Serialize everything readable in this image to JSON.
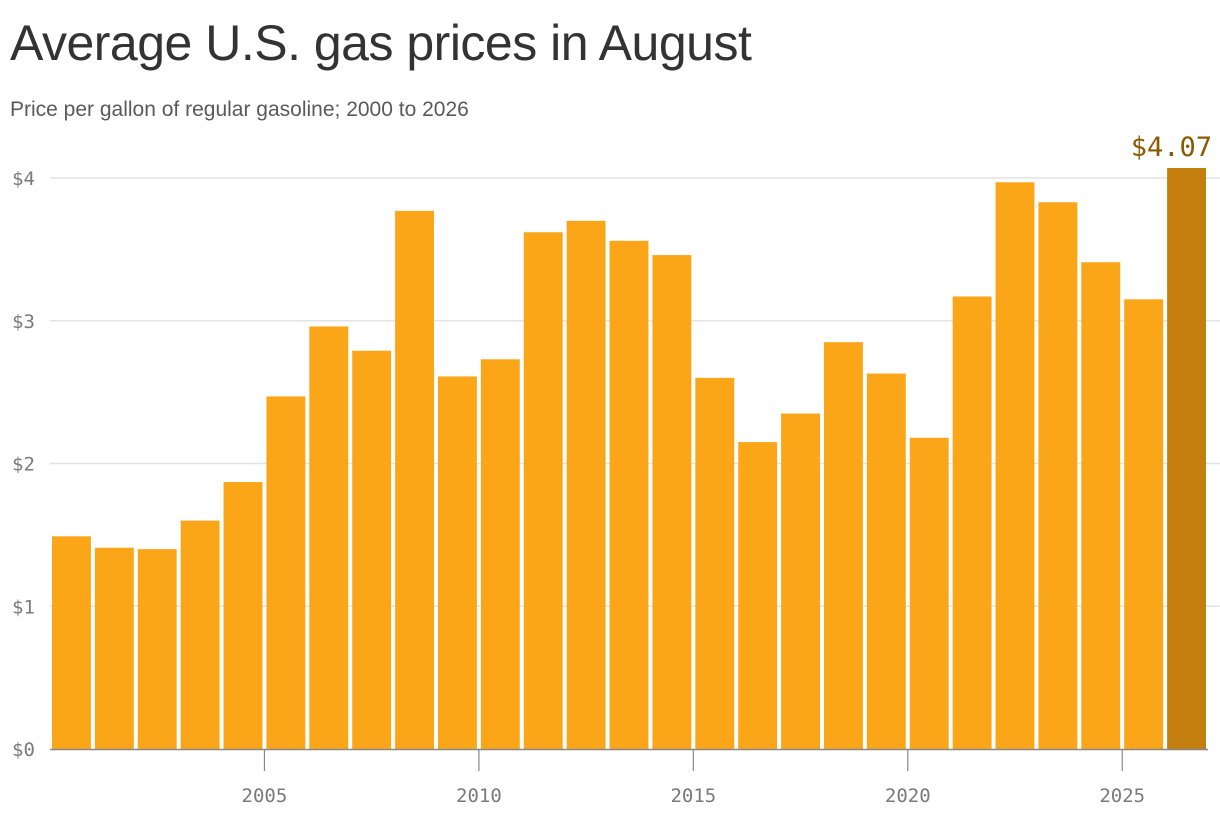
{
  "title": "Average U.S. gas prices in August",
  "subtitle": "Price per gallon of regular gasoline; 2000 to 2026",
  "colors": {
    "bar": "#FBA518",
    "highlight": "#C47F0F",
    "callout_text": "#8A5A00",
    "gridline": "#e3e3e3",
    "baseline": "#888888"
  },
  "chart_data": {
    "type": "bar",
    "title": "Average U.S. gas prices in August",
    "subtitle": "Price per gallon of regular gasoline; 2000 to 2026",
    "xlabel": "",
    "ylabel": "",
    "categories": [
      "2000",
      "2001",
      "2002",
      "2003",
      "2004",
      "2005",
      "2006",
      "2007",
      "2008",
      "2009",
      "2010",
      "2011",
      "2012",
      "2013",
      "2014",
      "2015",
      "2016",
      "2017",
      "2018",
      "2019",
      "2020",
      "2021",
      "2022",
      "2023",
      "2024",
      "2025",
      "2026"
    ],
    "values": [
      1.49,
      1.41,
      1.4,
      1.6,
      1.87,
      2.47,
      2.96,
      2.79,
      3.77,
      2.61,
      2.73,
      3.62,
      3.7,
      3.56,
      3.46,
      2.6,
      2.15,
      2.35,
      2.85,
      2.63,
      2.18,
      3.17,
      3.97,
      3.83,
      3.41,
      3.15,
      4.07
    ],
    "ylim": [
      0,
      4
    ],
    "y_ticks": [
      0,
      1,
      2,
      3,
      4
    ],
    "y_tick_labels": [
      "$0",
      "$1",
      "$2",
      "$3",
      "$4"
    ],
    "x_ticks": [
      "2005",
      "2010",
      "2015",
      "2020",
      "2025"
    ],
    "highlight": {
      "category": "2026",
      "label": "$4.07"
    },
    "grid": true
  }
}
